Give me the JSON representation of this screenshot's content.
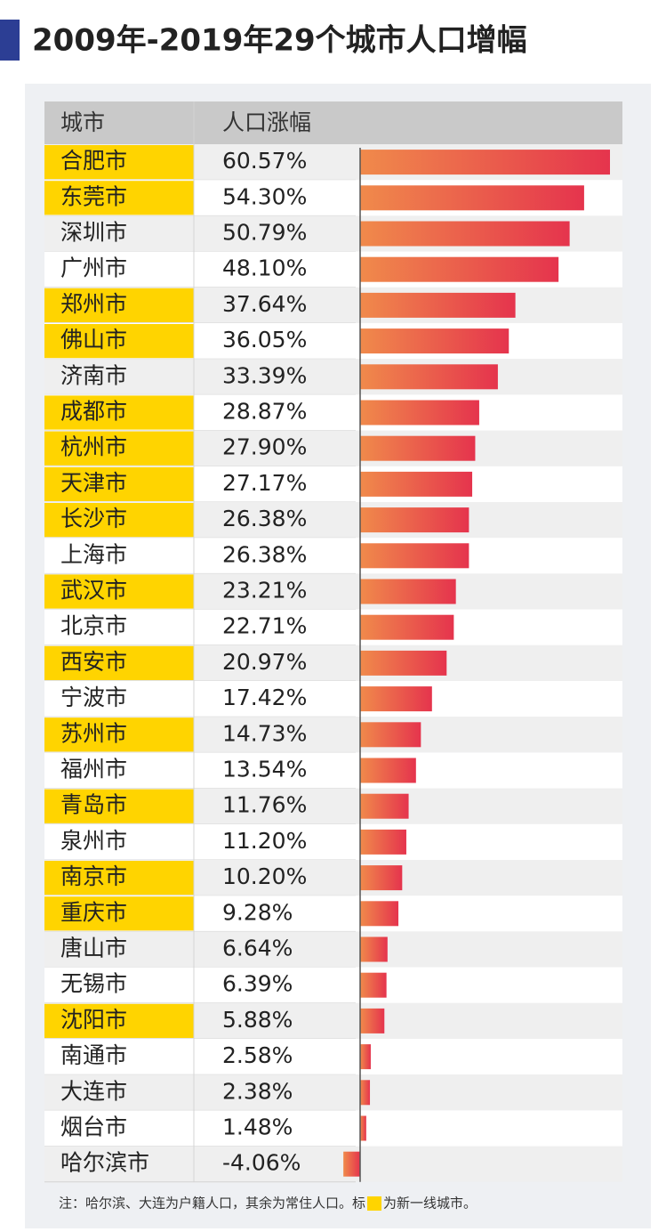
{
  "chart_data": {
    "type": "bar",
    "orientation": "horizontal",
    "title": "2009年-2019年29个城市人口增幅",
    "columns": [
      "城市",
      "人口涨幅"
    ],
    "categories": [
      "合肥市",
      "东莞市",
      "深圳市",
      "广州市",
      "郑州市",
      "佛山市",
      "济南市",
      "成都市",
      "杭州市",
      "天津市",
      "长沙市",
      "上海市",
      "武汉市",
      "北京市",
      "西安市",
      "宁波市",
      "苏州市",
      "福州市",
      "青岛市",
      "泉州市",
      "南京市",
      "重庆市",
      "唐山市",
      "无锡市",
      "沈阳市",
      "南通市",
      "大连市",
      "烟台市",
      "哈尔滨市"
    ],
    "values": [
      60.57,
      54.3,
      50.79,
      48.1,
      37.64,
      36.05,
      33.39,
      28.87,
      27.9,
      27.17,
      26.38,
      26.38,
      23.21,
      22.71,
      20.97,
      17.42,
      14.73,
      13.54,
      11.76,
      11.2,
      10.2,
      9.28,
      6.64,
      6.39,
      5.88,
      2.58,
      2.38,
      1.48,
      -4.06
    ],
    "value_labels": [
      "60.57%",
      "54.30%",
      "50.79%",
      "48.10%",
      "37.64%",
      "36.05%",
      "33.39%",
      "28.87%",
      "27.90%",
      "27.17%",
      "26.38%",
      "26.38%",
      "23.21%",
      "22.71%",
      "20.97%",
      "17.42%",
      "14.73%",
      "13.54%",
      "11.76%",
      "11.20%",
      "10.20%",
      "9.28%",
      "6.64%",
      "6.39%",
      "5.88%",
      "2.58%",
      "2.38%",
      "1.48%",
      "-4.06%"
    ],
    "highlight": [
      true,
      true,
      false,
      false,
      true,
      true,
      false,
      true,
      true,
      true,
      true,
      false,
      true,
      false,
      true,
      false,
      true,
      false,
      true,
      false,
      true,
      true,
      false,
      false,
      true,
      false,
      false,
      false,
      false
    ],
    "highlight_color": "#ffd400",
    "colors": [
      "#f08a4b",
      "#e5344d"
    ],
    "note": [
      "注：哈尔滨、大连为户籍人口，其余为常住人口。标",
      "为新一线城市。"
    ]
  }
}
